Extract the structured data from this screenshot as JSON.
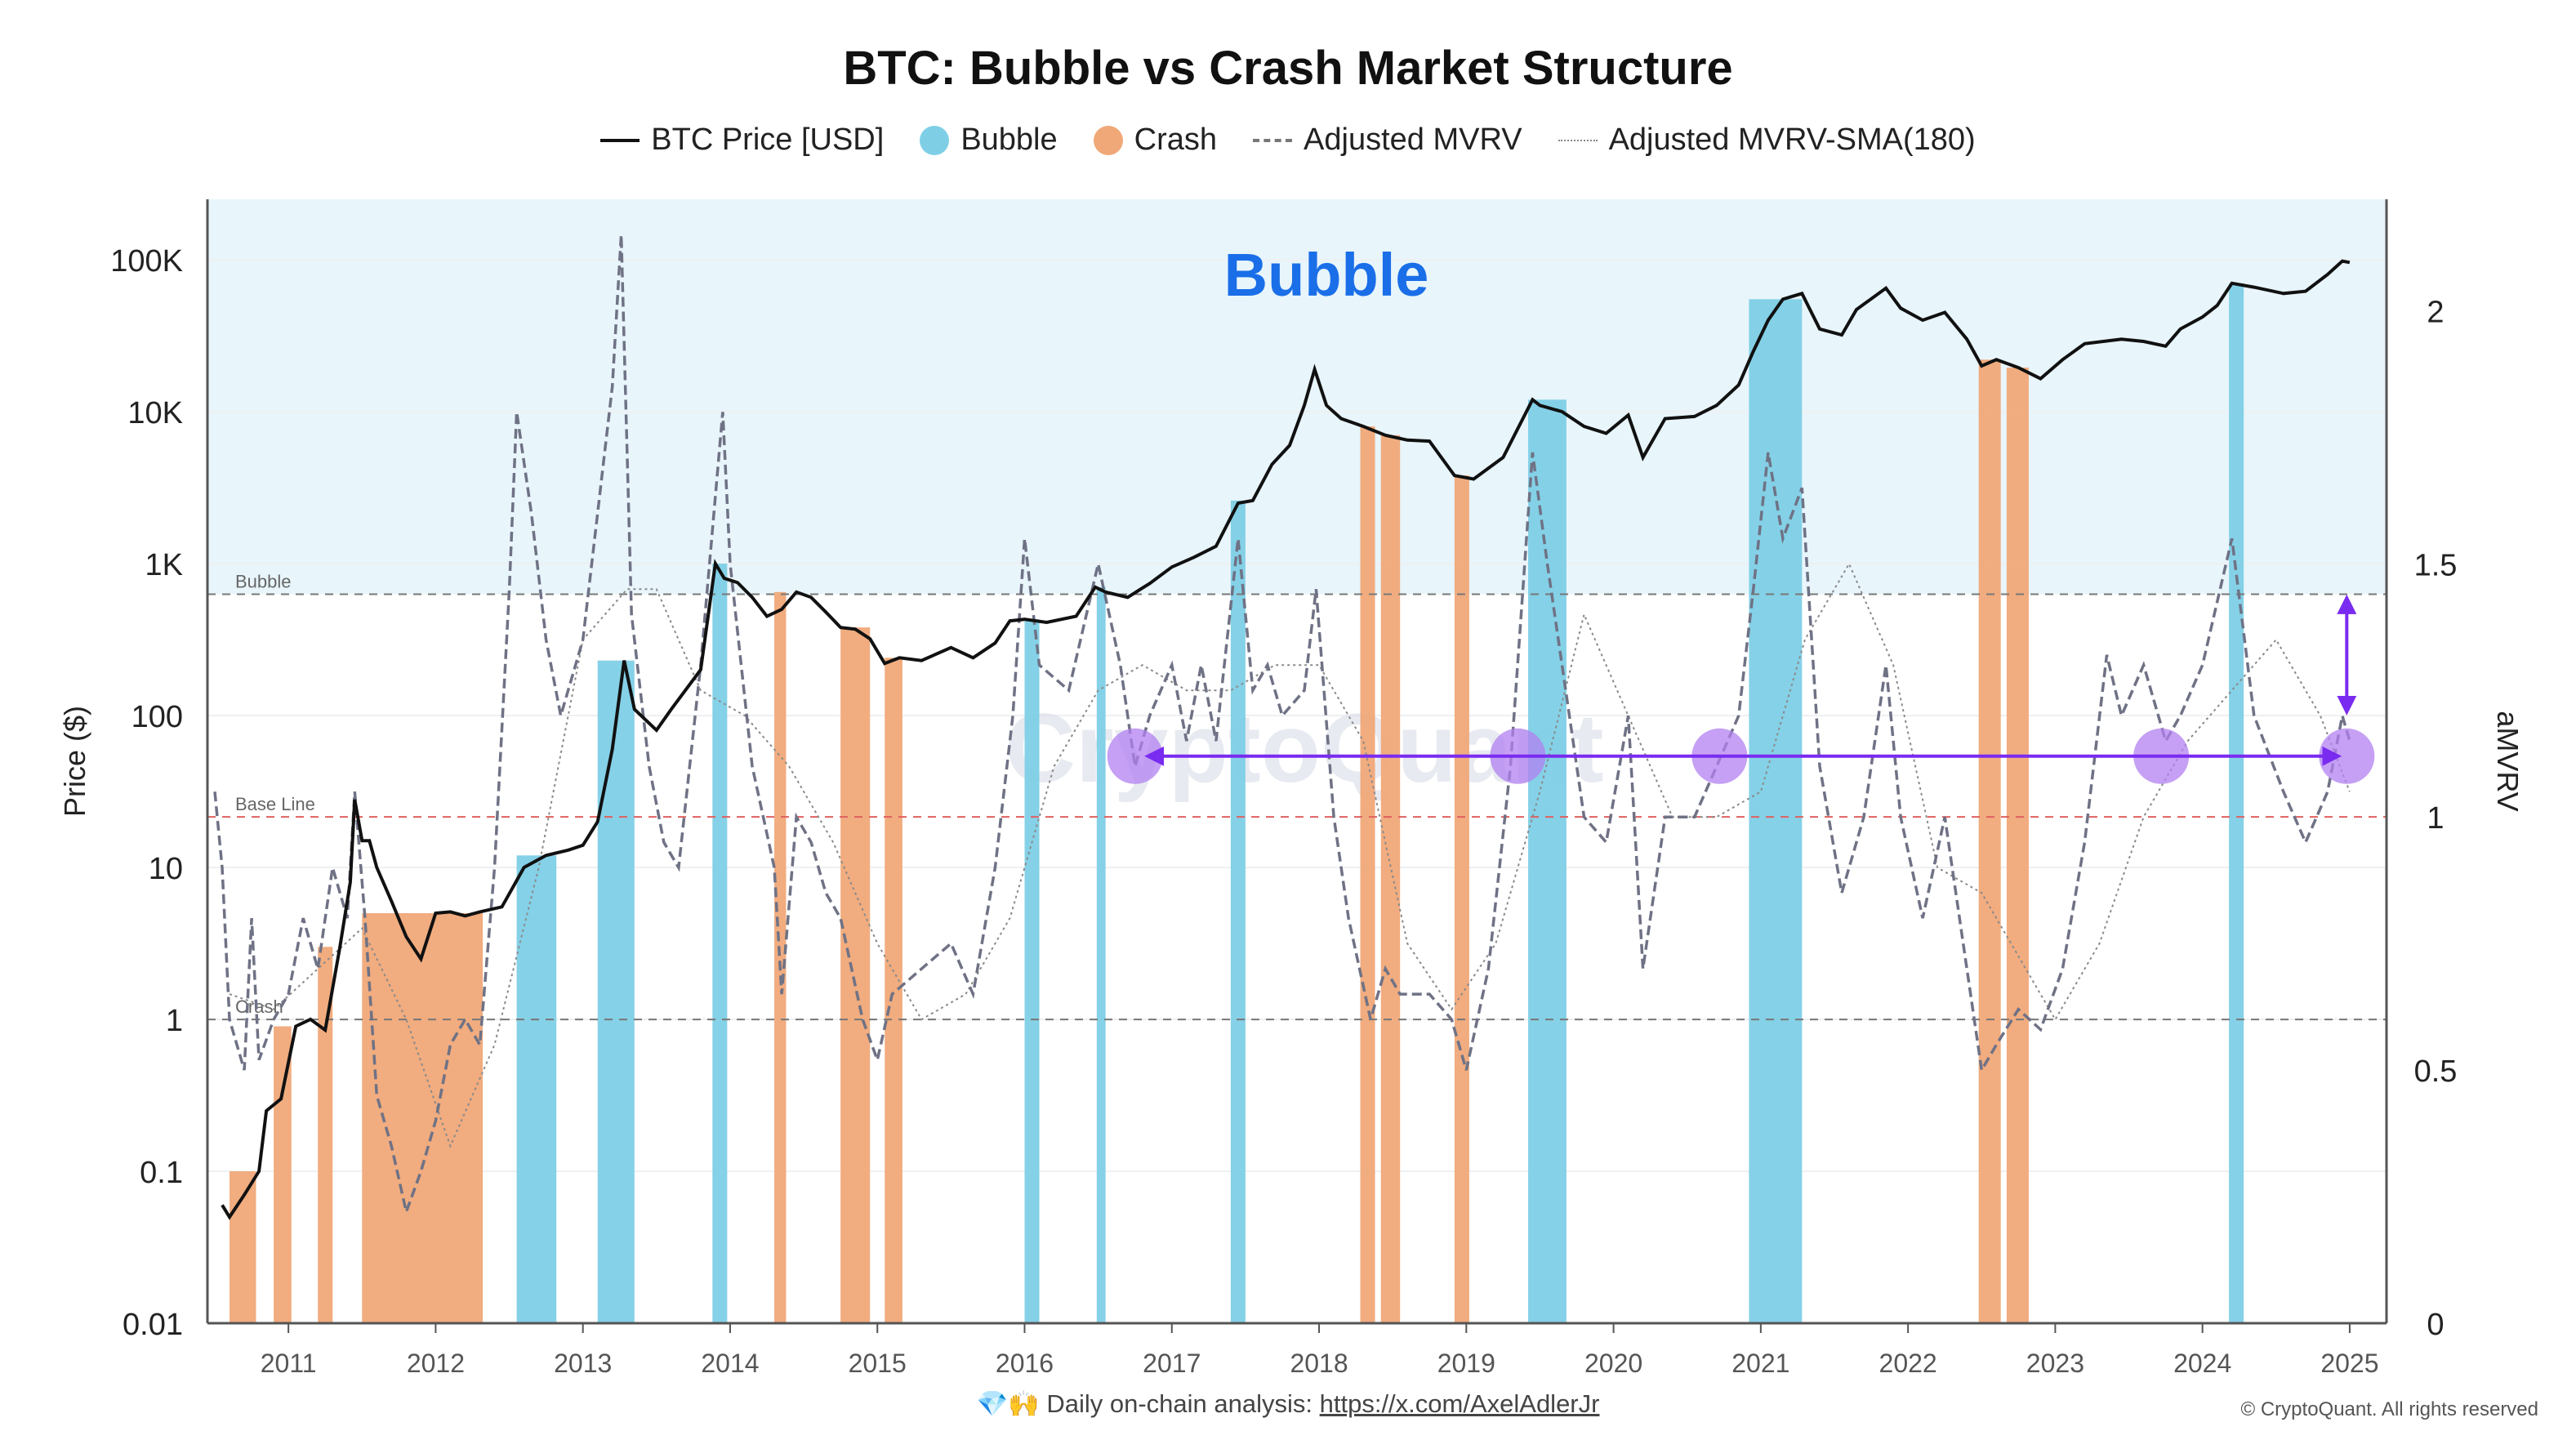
{
  "title": "BTC: Bubble vs Crash Market Structure",
  "legend": {
    "price": "BTC Price [USD]",
    "bubble": "Bubble",
    "crash": "Crash",
    "mvrv": "Adjusted MVRV",
    "sma": "Adjusted MVRV-SMA(180)"
  },
  "footer": {
    "icons": "💎🙌",
    "text": "Daily on-chain analysis:",
    "link": "https://x.com/AxelAdlerJr",
    "copyright": "© CryptoQuant. All rights reserved"
  },
  "colors": {
    "bubble": "#7ecfe6",
    "crash": "#f0a878",
    "bubble_zone": "#e8f5fb",
    "price": "#111111",
    "mvrv": "#6f7285",
    "sma": "#8a8a8a",
    "marker": "#b280f0",
    "arrow": "#7a2bf0",
    "baseline": "#e06060",
    "bubble_text": "#1a6ee8"
  },
  "chart_data": {
    "type": "line",
    "title": "BTC: Bubble vs Crash Market Structure",
    "zone_label": "Bubble",
    "watermark": "CryptoQuant",
    "ylabel_left": "Price ($)",
    "ylabel_right": "aMVRV",
    "y_left_scale": "log",
    "y_left_ticks": [
      {
        "v": 0.01,
        "label": "0.01"
      },
      {
        "v": 0.1,
        "label": "0.1"
      },
      {
        "v": 1,
        "label": "1"
      },
      {
        "v": 10,
        "label": "10"
      },
      {
        "v": 100,
        "label": "100"
      },
      {
        "v": 1000,
        "label": "1K"
      },
      {
        "v": 10000,
        "label": "10K"
      },
      {
        "v": 100000,
        "label": "100K"
      }
    ],
    "y_right_ticks": [
      {
        "v": 0,
        "label": "0"
      },
      {
        "v": 0.5,
        "label": "0.5"
      },
      {
        "v": 1,
        "label": "1"
      },
      {
        "v": 1.5,
        "label": "1.5"
      },
      {
        "v": 2,
        "label": "2"
      }
    ],
    "x_ticks": [
      "2011",
      "2012",
      "2013",
      "2014",
      "2015",
      "2016",
      "2017",
      "2018",
      "2019",
      "2020",
      "2021",
      "2022",
      "2023",
      "2024",
      "2025"
    ],
    "xlim": [
      2010.45,
      2025.25
    ],
    "y_left_lim": [
      0.01,
      250000
    ],
    "y_right_lim": [
      0,
      2.22
    ],
    "reference_lines": [
      {
        "label": "Bubble",
        "value": 1.44,
        "style": "dashed-gray"
      },
      {
        "label": "Base Line",
        "value": 1.0,
        "style": "dashed-red"
      },
      {
        "label": "Crash",
        "value": 0.6,
        "style": "dashed-gray"
      }
    ],
    "bubble_periods": [
      [
        2012.55,
        2012.82
      ],
      [
        2013.1,
        2013.35
      ],
      [
        2013.88,
        2013.98
      ],
      [
        2016.0,
        2016.1
      ],
      [
        2016.49,
        2016.55
      ],
      [
        2017.4,
        2017.5
      ],
      [
        2019.42,
        2019.68
      ],
      [
        2020.92,
        2021.28
      ],
      [
        2024.18,
        2024.28
      ]
    ],
    "crash_periods": [
      [
        2010.6,
        2010.78
      ],
      [
        2010.9,
        2011.02
      ],
      [
        2011.2,
        2011.3
      ],
      [
        2011.5,
        2012.32
      ],
      [
        2014.3,
        2014.38
      ],
      [
        2014.75,
        2014.95
      ],
      [
        2015.05,
        2015.17
      ],
      [
        2018.28,
        2018.38
      ],
      [
        2018.42,
        2018.55
      ],
      [
        2018.92,
        2019.02
      ],
      [
        2022.48,
        2022.63
      ],
      [
        2022.67,
        2022.82
      ]
    ],
    "price_series": [
      [
        2010.55,
        0.06
      ],
      [
        2010.6,
        0.05
      ],
      [
        2010.7,
        0.07
      ],
      [
        2010.8,
        0.1
      ],
      [
        2010.85,
        0.25
      ],
      [
        2010.95,
        0.3
      ],
      [
        2011.05,
        0.9
      ],
      [
        2011.15,
        1.0
      ],
      [
        2011.25,
        0.85
      ],
      [
        2011.35,
        3
      ],
      [
        2011.42,
        8
      ],
      [
        2011.45,
        28
      ],
      [
        2011.5,
        15
      ],
      [
        2011.55,
        15
      ],
      [
        2011.6,
        10
      ],
      [
        2011.7,
        6
      ],
      [
        2011.8,
        3.5
      ],
      [
        2011.9,
        2.5
      ],
      [
        2012.0,
        5
      ],
      [
        2012.1,
        5.1
      ],
      [
        2012.2,
        4.8
      ],
      [
        2012.3,
        5.1
      ],
      [
        2012.45,
        5.5
      ],
      [
        2012.6,
        10
      ],
      [
        2012.75,
        12
      ],
      [
        2012.9,
        13
      ],
      [
        2013.0,
        14
      ],
      [
        2013.1,
        20
      ],
      [
        2013.2,
        60
      ],
      [
        2013.28,
        230
      ],
      [
        2013.35,
        110
      ],
      [
        2013.5,
        80
      ],
      [
        2013.6,
        110
      ],
      [
        2013.8,
        200
      ],
      [
        2013.9,
        1000
      ],
      [
        2013.96,
        800
      ],
      [
        2014.05,
        750
      ],
      [
        2014.15,
        600
      ],
      [
        2014.25,
        450
      ],
      [
        2014.35,
        500
      ],
      [
        2014.45,
        650
      ],
      [
        2014.55,
        600
      ],
      [
        2014.65,
        480
      ],
      [
        2014.75,
        380
      ],
      [
        2014.85,
        370
      ],
      [
        2014.95,
        320
      ],
      [
        2015.05,
        220
      ],
      [
        2015.15,
        240
      ],
      [
        2015.3,
        230
      ],
      [
        2015.5,
        280
      ],
      [
        2015.65,
        240
      ],
      [
        2015.8,
        300
      ],
      [
        2015.9,
        420
      ],
      [
        2016.0,
        430
      ],
      [
        2016.15,
        410
      ],
      [
        2016.35,
        450
      ],
      [
        2016.48,
        700
      ],
      [
        2016.55,
        650
      ],
      [
        2016.7,
        600
      ],
      [
        2016.85,
        740
      ],
      [
        2017.0,
        950
      ],
      [
        2017.15,
        1100
      ],
      [
        2017.3,
        1300
      ],
      [
        2017.45,
        2500
      ],
      [
        2017.55,
        2600
      ],
      [
        2017.68,
        4500
      ],
      [
        2017.8,
        6000
      ],
      [
        2017.9,
        11000
      ],
      [
        2017.97,
        19000
      ],
      [
        2018.05,
        11000
      ],
      [
        2018.15,
        9000
      ],
      [
        2018.3,
        8000
      ],
      [
        2018.45,
        7000
      ],
      [
        2018.6,
        6500
      ],
      [
        2018.75,
        6400
      ],
      [
        2018.92,
        3800
      ],
      [
        2019.05,
        3600
      ],
      [
        2019.25,
        5000
      ],
      [
        2019.45,
        12000
      ],
      [
        2019.5,
        11000
      ],
      [
        2019.65,
        10000
      ],
      [
        2019.8,
        8000
      ],
      [
        2019.95,
        7200
      ],
      [
        2020.1,
        9500
      ],
      [
        2020.2,
        5000
      ],
      [
        2020.35,
        9000
      ],
      [
        2020.55,
        9300
      ],
      [
        2020.7,
        11000
      ],
      [
        2020.85,
        15000
      ],
      [
        2020.95,
        25000
      ],
      [
        2021.05,
        40000
      ],
      [
        2021.15,
        55000
      ],
      [
        2021.28,
        60000
      ],
      [
        2021.4,
        35000
      ],
      [
        2021.55,
        32000
      ],
      [
        2021.65,
        47000
      ],
      [
        2021.85,
        65000
      ],
      [
        2021.95,
        48000
      ],
      [
        2022.1,
        40000
      ],
      [
        2022.25,
        45000
      ],
      [
        2022.4,
        30000
      ],
      [
        2022.5,
        20000
      ],
      [
        2022.6,
        22000
      ],
      [
        2022.75,
        19500
      ],
      [
        2022.9,
        16500
      ],
      [
        2023.05,
        22000
      ],
      [
        2023.2,
        28000
      ],
      [
        2023.45,
        30000
      ],
      [
        2023.6,
        29000
      ],
      [
        2023.75,
        27000
      ],
      [
        2023.85,
        35000
      ],
      [
        2024.0,
        42000
      ],
      [
        2024.1,
        50000
      ],
      [
        2024.2,
        70000
      ],
      [
        2024.35,
        66000
      ],
      [
        2024.55,
        60000
      ],
      [
        2024.7,
        62000
      ],
      [
        2024.85,
        80000
      ],
      [
        2024.95,
        98000
      ],
      [
        2025.0,
        96000
      ]
    ],
    "mvrv_series": [
      [
        2010.5,
        1.05
      ],
      [
        2010.55,
        0.9
      ],
      [
        2010.6,
        0.6
      ],
      [
        2010.7,
        0.5
      ],
      [
        2010.75,
        0.8
      ],
      [
        2010.8,
        0.52
      ],
      [
        2010.9,
        0.6
      ],
      [
        2011.0,
        0.65
      ],
      [
        2011.1,
        0.8
      ],
      [
        2011.2,
        0.7
      ],
      [
        2011.3,
        0.9
      ],
      [
        2011.4,
        0.8
      ],
      [
        2011.45,
        1.05
      ],
      [
        2011.52,
        0.8
      ],
      [
        2011.6,
        0.45
      ],
      [
        2011.7,
        0.35
      ],
      [
        2011.8,
        0.22
      ],
      [
        2011.9,
        0.3
      ],
      [
        2012.0,
        0.4
      ],
      [
        2012.1,
        0.55
      ],
      [
        2012.2,
        0.6
      ],
      [
        2012.3,
        0.55
      ],
      [
        2012.4,
        0.9
      ],
      [
        2012.5,
        1.45
      ],
      [
        2012.55,
        1.8
      ],
      [
        2012.65,
        1.6
      ],
      [
        2012.75,
        1.35
      ],
      [
        2012.85,
        1.2
      ],
      [
        2013.0,
        1.35
      ],
      [
        2013.1,
        1.6
      ],
      [
        2013.2,
        1.85
      ],
      [
        2013.26,
        2.15
      ],
      [
        2013.33,
        1.4
      ],
      [
        2013.45,
        1.1
      ],
      [
        2013.55,
        0.95
      ],
      [
        2013.65,
        0.9
      ],
      [
        2013.8,
        1.3
      ],
      [
        2013.95,
        1.8
      ],
      [
        2014.0,
        1.5
      ],
      [
        2014.15,
        1.1
      ],
      [
        2014.3,
        0.9
      ],
      [
        2014.35,
        0.65
      ],
      [
        2014.45,
        1.0
      ],
      [
        2014.55,
        0.95
      ],
      [
        2014.65,
        0.85
      ],
      [
        2014.75,
        0.8
      ],
      [
        2014.9,
        0.6
      ],
      [
        2015.0,
        0.52
      ],
      [
        2015.1,
        0.65
      ],
      [
        2015.3,
        0.7
      ],
      [
        2015.5,
        0.75
      ],
      [
        2015.65,
        0.65
      ],
      [
        2015.8,
        0.9
      ],
      [
        2015.92,
        1.2
      ],
      [
        2016.0,
        1.55
      ],
      [
        2016.1,
        1.3
      ],
      [
        2016.3,
        1.25
      ],
      [
        2016.5,
        1.5
      ],
      [
        2016.65,
        1.3
      ],
      [
        2016.75,
        1.1
      ],
      [
        2016.85,
        1.2
      ],
      [
        2017.0,
        1.3
      ],
      [
        2017.1,
        1.15
      ],
      [
        2017.2,
        1.3
      ],
      [
        2017.3,
        1.15
      ],
      [
        2017.45,
        1.55
      ],
      [
        2017.55,
        1.25
      ],
      [
        2017.65,
        1.3
      ],
      [
        2017.75,
        1.2
      ],
      [
        2017.9,
        1.25
      ],
      [
        2017.98,
        1.45
      ],
      [
        2018.1,
        1.0
      ],
      [
        2018.2,
        0.8
      ],
      [
        2018.35,
        0.6
      ],
      [
        2018.45,
        0.7
      ],
      [
        2018.55,
        0.65
      ],
      [
        2018.75,
        0.65
      ],
      [
        2018.9,
        0.6
      ],
      [
        2019.0,
        0.5
      ],
      [
        2019.15,
        0.7
      ],
      [
        2019.3,
        1.1
      ],
      [
        2019.45,
        1.72
      ],
      [
        2019.55,
        1.5
      ],
      [
        2019.65,
        1.3
      ],
      [
        2019.8,
        1.0
      ],
      [
        2019.95,
        0.95
      ],
      [
        2020.1,
        1.2
      ],
      [
        2020.2,
        0.7
      ],
      [
        2020.35,
        1.0
      ],
      [
        2020.55,
        1.0
      ],
      [
        2020.7,
        1.1
      ],
      [
        2020.85,
        1.2
      ],
      [
        2020.95,
        1.45
      ],
      [
        2021.05,
        1.72
      ],
      [
        2021.15,
        1.55
      ],
      [
        2021.28,
        1.65
      ],
      [
        2021.4,
        1.1
      ],
      [
        2021.55,
        0.85
      ],
      [
        2021.7,
        1.0
      ],
      [
        2021.85,
        1.3
      ],
      [
        2021.95,
        1.0
      ],
      [
        2022.1,
        0.8
      ],
      [
        2022.25,
        1.0
      ],
      [
        2022.4,
        0.7
      ],
      [
        2022.5,
        0.5
      ],
      [
        2022.6,
        0.55
      ],
      [
        2022.75,
        0.62
      ],
      [
        2022.9,
        0.58
      ],
      [
        2023.05,
        0.7
      ],
      [
        2023.2,
        0.95
      ],
      [
        2023.35,
        1.32
      ],
      [
        2023.45,
        1.2
      ],
      [
        2023.6,
        1.3
      ],
      [
        2023.75,
        1.15
      ],
      [
        2023.85,
        1.2
      ],
      [
        2024.0,
        1.3
      ],
      [
        2024.2,
        1.55
      ],
      [
        2024.35,
        1.2
      ],
      [
        2024.55,
        1.05
      ],
      [
        2024.7,
        0.95
      ],
      [
        2024.85,
        1.05
      ],
      [
        2024.95,
        1.2
      ],
      [
        2025.0,
        1.15
      ]
    ],
    "sma_series": [
      [
        2010.6,
        0.65
      ],
      [
        2010.9,
        0.62
      ],
      [
        2011.2,
        0.7
      ],
      [
        2011.5,
        0.78
      ],
      [
        2011.8,
        0.6
      ],
      [
        2012.1,
        0.35
      ],
      [
        2012.4,
        0.55
      ],
      [
        2012.7,
        0.9
      ],
      [
        2013.0,
        1.35
      ],
      [
        2013.3,
        1.45
      ],
      [
        2013.5,
        1.45
      ],
      [
        2013.8,
        1.25
      ],
      [
        2014.1,
        1.2
      ],
      [
        2014.4,
        1.1
      ],
      [
        2014.7,
        0.95
      ],
      [
        2015.0,
        0.75
      ],
      [
        2015.3,
        0.6
      ],
      [
        2015.6,
        0.65
      ],
      [
        2015.9,
        0.8
      ],
      [
        2016.2,
        1.1
      ],
      [
        2016.5,
        1.25
      ],
      [
        2016.8,
        1.3
      ],
      [
        2017.1,
        1.25
      ],
      [
        2017.4,
        1.25
      ],
      [
        2017.7,
        1.3
      ],
      [
        2018.0,
        1.3
      ],
      [
        2018.3,
        1.15
      ],
      [
        2018.6,
        0.75
      ],
      [
        2018.9,
        0.62
      ],
      [
        2019.2,
        0.75
      ],
      [
        2019.5,
        1.05
      ],
      [
        2019.8,
        1.4
      ],
      [
        2020.1,
        1.2
      ],
      [
        2020.4,
        1.0
      ],
      [
        2020.7,
        1.0
      ],
      [
        2021.0,
        1.05
      ],
      [
        2021.3,
        1.35
      ],
      [
        2021.6,
        1.5
      ],
      [
        2021.9,
        1.3
      ],
      [
        2022.2,
        0.9
      ],
      [
        2022.5,
        0.85
      ],
      [
        2022.8,
        0.7
      ],
      [
        2023.0,
        0.6
      ],
      [
        2023.3,
        0.75
      ],
      [
        2023.6,
        1.0
      ],
      [
        2023.9,
        1.15
      ],
      [
        2024.2,
        1.25
      ],
      [
        2024.5,
        1.35
      ],
      [
        2024.8,
        1.2
      ],
      [
        2025.0,
        1.05
      ]
    ],
    "markers": [
      [
        2016.75,
        1.12
      ],
      [
        2019.35,
        1.12
      ],
      [
        2020.72,
        1.12
      ],
      [
        2023.72,
        1.12
      ],
      [
        2024.98,
        1.12
      ]
    ],
    "arrows": [
      {
        "from": [
          2016.88,
          1.12
        ],
        "to": [
          2024.88,
          1.12
        ],
        "type": "double"
      },
      {
        "from": [
          2024.98,
          1.22
        ],
        "to": [
          2024.98,
          1.42
        ],
        "type": "double"
      }
    ]
  }
}
